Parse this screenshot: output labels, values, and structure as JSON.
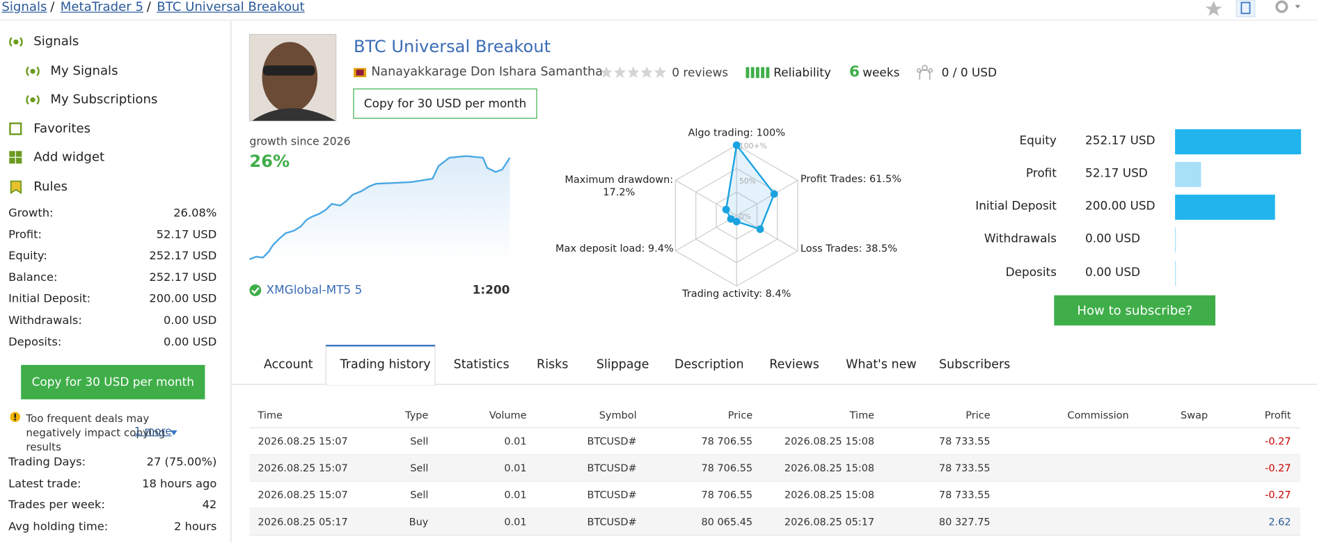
{
  "breadcrumb": [
    "Signals",
    "MetaTrader 5",
    "BTC Universal Breakout"
  ],
  "sidebar": {
    "nav": [
      "Signals",
      "My Signals",
      "My Subscriptions",
      "Favorites",
      "Add widget",
      "Rules"
    ],
    "stats": [
      [
        "Growth:",
        "26.08%"
      ],
      [
        "Profit:",
        "52.17 USD"
      ],
      [
        "Equity:",
        "252.17 USD"
      ],
      [
        "Balance:",
        "252.17 USD"
      ],
      [
        "Initial Deposit:",
        "200.00 USD"
      ],
      [
        "Withdrawals:",
        "0.00 USD"
      ],
      [
        "Deposits:",
        "0.00 USD"
      ]
    ],
    "copy_button": "Copy for 30 USD per month",
    "warning": "Too frequent deals may negatively impact copying results",
    "more": "1 more",
    "trading_stats": [
      [
        "Trading Days:",
        "27 (75.00%)"
      ],
      [
        "Latest trade:",
        "18 hours ago"
      ],
      [
        "Trades per week:",
        "42"
      ],
      [
        "Avg holding time:",
        "2 hours"
      ]
    ]
  },
  "header": {
    "title": "BTC Universal Breakout",
    "author": "Nanayakkarage Don Ishara Samantha",
    "reviews": "0 reviews",
    "reliability": "Reliability",
    "weeks_number": "6",
    "weeks_unit": "weeks",
    "subscribers": "0 / 0 USD",
    "copy_button": "Copy for 30 USD per month"
  },
  "growth": {
    "label": "growth since 2026",
    "value": "26%",
    "broker": "XMGlobal-MT5 5",
    "leverage": "1:200"
  },
  "radar": {
    "axes": [
      {
        "label": "Algo trading: 100%",
        "value": 100
      },
      {
        "label": "Profit Trades: 61.5%",
        "value": 61.5
      },
      {
        "label": "Loss Trades: 38.5%",
        "value": 38.5
      },
      {
        "label": "Trading activity: 8.4%",
        "value": 8.4
      },
      {
        "label": "Max deposit load: 9.4%",
        "value": 9.4
      },
      {
        "label": "Maximum drawdown: 17.2%",
        "value": 17.2
      }
    ],
    "ticks": [
      {
        "value": 100,
        "label": "100+%"
      },
      {
        "value": 50,
        "label": "50%"
      },
      {
        "value": 0,
        "label": "0%"
      }
    ]
  },
  "balance": {
    "rows": [
      {
        "label": "Equity",
        "text": "252.17 USD",
        "value": 252.17
      },
      {
        "label": "Profit",
        "text": "52.17 USD",
        "value": 52.17
      },
      {
        "label": "Initial Deposit",
        "text": "200.00 USD",
        "value": 200
      },
      {
        "label": "Withdrawals",
        "text": "0.00 USD",
        "value": 0
      },
      {
        "label": "Deposits",
        "text": "0.00 USD",
        "value": 0
      }
    ],
    "button": "How to subscribe?"
  },
  "tabs": [
    "Account",
    "Trading history",
    "Statistics",
    "Risks",
    "Slippage",
    "Description",
    "Reviews",
    "What's new",
    "Subscribers"
  ],
  "table": {
    "columns": [
      "Time",
      "Type",
      "Volume",
      "Symbol",
      "Price",
      "Time",
      "Price",
      "Commission",
      "Swap",
      "Profit"
    ],
    "rows": [
      [
        "2026.08.25 15:07",
        "Sell",
        "0.01",
        "BTCUSD#",
        "78 706.55",
        "2026.08.25 15:08",
        "78 733.55",
        "",
        "",
        "-0.27"
      ],
      [
        "2026.08.25 15:07",
        "Sell",
        "0.01",
        "BTCUSD#",
        "78 706.55",
        "2026.08.25 15:08",
        "78 733.55",
        "",
        "",
        "-0.27"
      ],
      [
        "2026.08.25 15:07",
        "Sell",
        "0.01",
        "BTCUSD#",
        "78 706.55",
        "2026.08.25 15:08",
        "78 733.55",
        "",
        "",
        "-0.27"
      ],
      [
        "2026.08.25 05:17",
        "Buy",
        "0.01",
        "BTCUSD#",
        "80 065.45",
        "2026.08.25 05:17",
        "80 327.75",
        "",
        "",
        "2.62"
      ]
    ]
  }
}
